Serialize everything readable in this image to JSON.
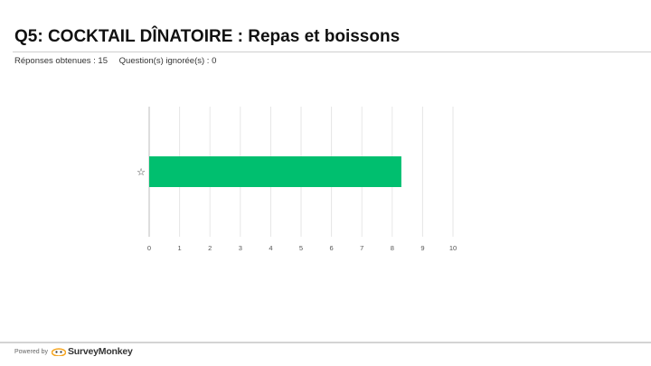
{
  "header": {
    "title": "Q5: COCKTAIL DÎNATOIRE : Repas et boissons",
    "responses": "Réponses obtenues : 15",
    "skipped": "Question(s) ignorée(s) : 0"
  },
  "chart_data": {
    "type": "bar",
    "orientation": "horizontal",
    "categories": [
      "☆"
    ],
    "values": [
      8.3
    ],
    "xlim": [
      0,
      10
    ],
    "xticks": [
      0,
      1,
      2,
      3,
      4,
      5,
      6,
      7,
      8,
      9,
      10
    ],
    "bar_color": "#00bf6f",
    "grid": true
  },
  "footer": {
    "powered_by": "Powered by",
    "brand": "SurveyMonkey"
  },
  "colors": {
    "bar": "#00bf6f",
    "brand_icon": "#f5a623"
  }
}
